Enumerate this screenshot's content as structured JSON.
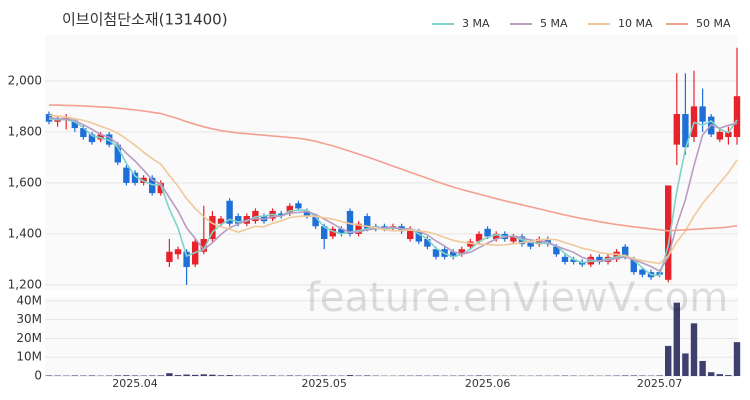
{
  "chart_data": [
    {
      "type": "candlestick",
      "title": "이브이첨단소재(131400)",
      "watermark": "feature.enViewV.com",
      "categories": [
        null,
        null,
        null,
        null,
        null,
        null,
        null,
        null,
        null,
        null,
        "2025.04",
        null,
        null,
        null,
        null,
        null,
        null,
        null,
        null,
        null,
        null,
        null,
        null,
        null,
        null,
        null,
        null,
        null,
        null,
        null,
        null,
        null,
        "2025.05",
        null,
        null,
        null,
        null,
        null,
        null,
        null,
        null,
        null,
        null,
        null,
        null,
        null,
        null,
        null,
        null,
        null,
        null,
        "2025.06",
        null,
        null,
        null,
        null,
        null,
        null,
        null,
        null,
        null,
        null,
        null,
        null,
        null,
        null,
        null,
        null,
        null,
        null,
        null,
        "2025.07",
        null,
        null,
        null,
        null,
        null,
        null,
        null,
        null,
        null
      ],
      "open": [
        1870,
        1840,
        1845,
        1845,
        1815,
        1790,
        1770,
        1790,
        1750,
        1660,
        1640,
        1600,
        1620,
        1560,
        1290,
        1320,
        1330,
        1280,
        1330,
        1380,
        1440,
        1530,
        1470,
        1440,
        1450,
        1470,
        1460,
        1480,
        1480,
        1520,
        1490,
        1470,
        1430,
        1390,
        1420,
        1490,
        1400,
        1470,
        1430,
        1430,
        1420,
        1430,
        1380,
        1410,
        1380,
        1340,
        1340,
        1330,
        1320,
        1350,
        1370,
        1420,
        1380,
        1400,
        1370,
        1390,
        1370,
        1360,
        1380,
        1350,
        1310,
        1300,
        1290,
        1280,
        1310,
        1290,
        1300,
        1350,
        1300,
        1260,
        1250,
        1250,
        1220,
        1750,
        1870,
        1780,
        1900,
        1860,
        1770,
        1780,
        1780
      ],
      "high": [
        1880,
        1860,
        1870,
        1850,
        1825,
        1800,
        1800,
        1800,
        1760,
        1670,
        1650,
        1630,
        1630,
        1610,
        1380,
        1350,
        1340,
        1380,
        1510,
        1490,
        1470,
        1540,
        1480,
        1480,
        1500,
        1480,
        1500,
        1490,
        1520,
        1530,
        1500,
        1480,
        1440,
        1430,
        1430,
        1500,
        1450,
        1480,
        1440,
        1440,
        1440,
        1440,
        1430,
        1420,
        1390,
        1350,
        1350,
        1340,
        1350,
        1380,
        1410,
        1430,
        1410,
        1410,
        1400,
        1400,
        1380,
        1390,
        1390,
        1360,
        1320,
        1310,
        1300,
        1320,
        1320,
        1320,
        1340,
        1360,
        1310,
        1270,
        1260,
        1260,
        1590,
        2030,
        2030,
        2040,
        1970,
        1870,
        1810,
        1820,
        2130
      ],
      "low": [
        1830,
        1820,
        1810,
        1800,
        1770,
        1750,
        1760,
        1740,
        1670,
        1590,
        1590,
        1590,
        1550,
        1550,
        1270,
        1300,
        1200,
        1270,
        1320,
        1370,
        1430,
        1430,
        1430,
        1430,
        1440,
        1440,
        1450,
        1460,
        1470,
        1490,
        1460,
        1420,
        1340,
        1380,
        1390,
        1390,
        1390,
        1410,
        1410,
        1410,
        1410,
        1400,
        1370,
        1360,
        1340,
        1300,
        1300,
        1300,
        1310,
        1340,
        1360,
        1380,
        1370,
        1370,
        1360,
        1350,
        1340,
        1350,
        1350,
        1310,
        1280,
        1280,
        1270,
        1270,
        1280,
        1280,
        1290,
        1300,
        1240,
        1230,
        1220,
        1230,
        1210,
        1670,
        1710,
        1760,
        1800,
        1780,
        1760,
        1750,
        1750
      ],
      "close": [
        1840,
        1850,
        1855,
        1815,
        1780,
        1760,
        1790,
        1750,
        1680,
        1600,
        1600,
        1620,
        1560,
        1600,
        1330,
        1340,
        1270,
        1370,
        1380,
        1470,
        1460,
        1440,
        1440,
        1470,
        1490,
        1450,
        1490,
        1470,
        1510,
        1500,
        1470,
        1430,
        1380,
        1420,
        1400,
        1400,
        1440,
        1420,
        1420,
        1420,
        1430,
        1410,
        1420,
        1370,
        1350,
        1310,
        1310,
        1310,
        1340,
        1370,
        1400,
        1390,
        1400,
        1380,
        1390,
        1360,
        1350,
        1380,
        1360,
        1320,
        1290,
        1290,
        1280,
        1310,
        1290,
        1310,
        1330,
        1310,
        1250,
        1240,
        1230,
        1240,
        1590,
        1870,
        1740,
        1900,
        1840,
        1790,
        1800,
        1800,
        1940
      ],
      "up_color": "#e8222b",
      "down_color": "#1f6fd8",
      "series": [
        {
          "name": "3 MA",
          "color": "#7fd3c8",
          "values": [
            1850,
            1848,
            1848,
            1840,
            1817,
            1785,
            1777,
            1767,
            1740,
            1677,
            1627,
            1607,
            1593,
            1593,
            1497,
            1423,
            1313,
            1327,
            1340,
            1407,
            1437,
            1457,
            1447,
            1450,
            1467,
            1470,
            1477,
            1470,
            1490,
            1493,
            1493,
            1467,
            1427,
            1410,
            1400,
            1407,
            1413,
            1420,
            1427,
            1420,
            1423,
            1420,
            1420,
            1400,
            1380,
            1343,
            1323,
            1310,
            1320,
            1340,
            1370,
            1387,
            1397,
            1390,
            1390,
            1377,
            1367,
            1363,
            1363,
            1353,
            1323,
            1300,
            1287,
            1293,
            1293,
            1303,
            1310,
            1317,
            1297,
            1267,
            1240,
            1237,
            1353,
            1567,
            1733,
            1837,
            1827,
            1843,
            1810,
            1797,
            1847
          ]
        },
        {
          "name": "5 MA",
          "color": "#b79cc4",
          "values": [
            1855,
            1852,
            1850,
            1845,
            1828,
            1810,
            1790,
            1779,
            1752,
            1716,
            1686,
            1650,
            1612,
            1596,
            1542,
            1490,
            1424,
            1382,
            1338,
            1366,
            1398,
            1424,
            1438,
            1454,
            1460,
            1458,
            1468,
            1470,
            1482,
            1484,
            1488,
            1476,
            1458,
            1440,
            1420,
            1406,
            1408,
            1416,
            1420,
            1424,
            1426,
            1420,
            1420,
            1410,
            1396,
            1372,
            1352,
            1330,
            1322,
            1328,
            1346,
            1364,
            1380,
            1388,
            1392,
            1384,
            1376,
            1372,
            1368,
            1352,
            1340,
            1328,
            1308,
            1298,
            1294,
            1296,
            1304,
            1310,
            1298,
            1286,
            1272,
            1254,
            1310,
            1434,
            1534,
            1668,
            1788,
            1828,
            1814,
            1826,
            1834
          ]
        },
        {
          "name": "10 MA",
          "color": "#f0c89a",
          "values": [
            1865,
            1862,
            1858,
            1852,
            1845,
            1835,
            1822,
            1810,
            1795,
            1772,
            1748,
            1720,
            1695,
            1674,
            1629,
            1587,
            1538,
            1500,
            1467,
            1441,
            1427,
            1419,
            1407,
            1418,
            1430,
            1428,
            1441,
            1451,
            1464,
            1469,
            1470,
            1469,
            1463,
            1458,
            1449,
            1440,
            1435,
            1430,
            1424,
            1416,
            1412,
            1413,
            1415,
            1412,
            1408,
            1399,
            1386,
            1375,
            1368,
            1363,
            1360,
            1358,
            1356,
            1357,
            1361,
            1366,
            1370,
            1377,
            1379,
            1377,
            1366,
            1356,
            1344,
            1337,
            1327,
            1322,
            1320,
            1314,
            1303,
            1295,
            1289,
            1284,
            1314,
            1368,
            1412,
            1470,
            1520,
            1560,
            1600,
            1640,
            1690
          ]
        },
        {
          "name": "50 MA",
          "color": "#f4a090",
          "values": [
            1905,
            1905,
            1904,
            1903,
            1902,
            1900,
            1898,
            1896,
            1893,
            1890,
            1886,
            1882,
            1877,
            1872,
            1862,
            1852,
            1840,
            1830,
            1820,
            1812,
            1805,
            1800,
            1796,
            1793,
            1790,
            1787,
            1784,
            1781,
            1778,
            1775,
            1770,
            1763,
            1754,
            1745,
            1735,
            1724,
            1713,
            1702,
            1690,
            1678,
            1666,
            1654,
            1642,
            1630,
            1618,
            1606,
            1595,
            1584,
            1574,
            1565,
            1556,
            1547,
            1538,
            1530,
            1522,
            1514,
            1506,
            1498,
            1490,
            1482,
            1474,
            1467,
            1460,
            1454,
            1448,
            1442,
            1437,
            1432,
            1428,
            1424,
            1420,
            1416,
            1412,
            1414,
            1416,
            1418,
            1420,
            1422,
            1424,
            1427,
            1432
          ]
        }
      ],
      "ylim": [
        1180,
        2180
      ],
      "yticks": [
        {
          "value": 1200,
          "label": "1,200"
        },
        {
          "value": 1400,
          "label": "1,400"
        },
        {
          "value": 1600,
          "label": "1,600"
        },
        {
          "value": 1800,
          "label": "1,800"
        },
        {
          "value": 2000,
          "label": "2,000"
        }
      ],
      "grid": true
    },
    {
      "type": "bar",
      "color": "#3f3f6e",
      "values": [
        300000,
        250000,
        200000,
        300000,
        250000,
        300000,
        200000,
        250000,
        350000,
        400000,
        300000,
        250000,
        300000,
        350000,
        1500000,
        500000,
        800000,
        600000,
        900000,
        700000,
        400000,
        500000,
        300000,
        250000,
        300000,
        250000,
        300000,
        200000,
        300000,
        250000,
        200000,
        250000,
        300000,
        200000,
        200000,
        500000,
        250000,
        300000,
        200000,
        150000,
        150000,
        200000,
        200000,
        250000,
        200000,
        250000,
        200000,
        200000,
        250000,
        200000,
        300000,
        250000,
        200000,
        150000,
        200000,
        150000,
        150000,
        200000,
        150000,
        200000,
        250000,
        200000,
        150000,
        200000,
        150000,
        200000,
        250000,
        300000,
        300000,
        250000,
        200000,
        300000,
        16000000,
        39000000,
        12000000,
        28000000,
        8000000,
        2000000,
        1000000,
        500000,
        18000000
      ],
      "ylim": [
        0,
        42000000
      ],
      "yticks": [
        0,
        {
          "value": 10000000,
          "label": "10M"
        },
        {
          "value": 20000000,
          "label": "20M"
        },
        {
          "value": 30000000,
          "label": "30M"
        },
        {
          "value": 40000000,
          "label": "40M"
        }
      ],
      "grid": true
    }
  ]
}
